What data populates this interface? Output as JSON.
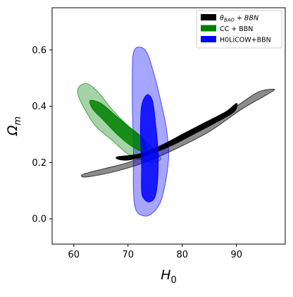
{
  "chart_data": {
    "type": "contour",
    "xlabel_base": "H",
    "xlabel_sub": "0",
    "ylabel_base": "Ω",
    "ylabel_sub": "m",
    "xlim": [
      56,
      99
    ],
    "ylim": [
      -0.09,
      0.75
    ],
    "xticks": [
      60,
      70,
      80,
      90
    ],
    "yticks": [
      0.0,
      0.2,
      0.4,
      0.6
    ],
    "ytick_labels": [
      "0.0",
      "0.2",
      "0.4",
      "0.6"
    ],
    "grid": false,
    "legend_position": "top-right",
    "series": [
      {
        "name": "CC + BBN",
        "legend_label": "CC + BBN",
        "color": "#008000",
        "contours": [
          {
            "level": "2sigma",
            "opacity": 0.35,
            "points": [
              [
                61,
                0.47
              ],
              [
                62.5,
                0.48
              ],
              [
                64.5,
                0.45
              ],
              [
                67,
                0.39
              ],
              [
                70,
                0.33
              ],
              [
                73,
                0.28
              ],
              [
                75.5,
                0.23
              ],
              [
                76,
                0.21
              ],
              [
                74.5,
                0.2
              ],
              [
                72.5,
                0.21
              ],
              [
                70,
                0.23
              ],
              [
                67,
                0.28
              ],
              [
                64,
                0.33
              ],
              [
                62,
                0.39
              ],
              [
                60.8,
                0.44
              ]
            ]
          },
          {
            "level": "1sigma",
            "opacity": 0.85,
            "points": [
              [
                63,
                0.42
              ],
              [
                65,
                0.41
              ],
              [
                67.5,
                0.37
              ],
              [
                70,
                0.33
              ],
              [
                72.5,
                0.29
              ],
              [
                73.5,
                0.25
              ],
              [
                72.5,
                0.24
              ],
              [
                70.5,
                0.26
              ],
              [
                68,
                0.3
              ],
              [
                65.5,
                0.35
              ],
              [
                63.5,
                0.39
              ]
            ]
          }
        ]
      },
      {
        "name": "θ_BAO + BBN",
        "legend_label_base": "θ",
        "legend_label_sub": "BAO",
        "legend_label_rest": " + BBN",
        "color": "#000000",
        "contours": [
          {
            "level": "2sigma",
            "opacity": 0.45,
            "points": [
              [
                62,
                0.16
              ],
              [
                66,
                0.18
              ],
              [
                70,
                0.2
              ],
              [
                75,
                0.24
              ],
              [
                80,
                0.29
              ],
              [
                85,
                0.34
              ],
              [
                90,
                0.4
              ],
              [
                94,
                0.45
              ],
              [
                97,
                0.46
              ],
              [
                95.5,
                0.44
              ],
              [
                91,
                0.39
              ],
              [
                85,
                0.31
              ],
              [
                79,
                0.25
              ],
              [
                73,
                0.2
              ],
              [
                68,
                0.17
              ],
              [
                63,
                0.15
              ],
              [
                61.5,
                0.15
              ]
            ]
          },
          {
            "level": "1sigma",
            "opacity": 1.0,
            "points": [
              [
                68,
                0.22
              ],
              [
                72,
                0.23
              ],
              [
                76,
                0.26
              ],
              [
                80,
                0.3
              ],
              [
                84,
                0.34
              ],
              [
                88,
                0.38
              ],
              [
                90,
                0.41
              ],
              [
                89.5,
                0.38
              ],
              [
                86,
                0.34
              ],
              [
                82,
                0.3
              ],
              [
                78,
                0.26
              ],
              [
                74,
                0.23
              ],
              [
                70.5,
                0.21
              ],
              [
                68.5,
                0.21
              ]
            ]
          }
        ]
      },
      {
        "name": "H0LiCOW+BBN",
        "legend_label": "H0LiCOW+BBN",
        "color": "#0000ff",
        "contours": [
          {
            "level": "2sigma",
            "opacity": 0.35,
            "points": [
              [
                71,
                0.59
              ],
              [
                72,
                0.61
              ],
              [
                73.5,
                0.59
              ],
              [
                75,
                0.5
              ],
              [
                76,
                0.42
              ],
              [
                77,
                0.33
              ],
              [
                77.5,
                0.23
              ],
              [
                77,
                0.14
              ],
              [
                76,
                0.06
              ],
              [
                74.5,
                0.02
              ],
              [
                73,
                0.01
              ],
              [
                71.5,
                0.03
              ],
              [
                71,
                0.1
              ],
              [
                71,
                0.25
              ],
              [
                70.8,
                0.4
              ],
              [
                70.8,
                0.52
              ]
            ]
          },
          {
            "level": "1sigma",
            "opacity": 0.85,
            "points": [
              [
                72.5,
                0.4
              ],
              [
                73.5,
                0.44
              ],
              [
                74.5,
                0.42
              ],
              [
                75,
                0.35
              ],
              [
                75.5,
                0.25
              ],
              [
                75.5,
                0.15
              ],
              [
                75,
                0.08
              ],
              [
                74,
                0.06
              ],
              [
                73,
                0.07
              ],
              [
                72.5,
                0.1
              ],
              [
                72.5,
                0.2
              ],
              [
                72.3,
                0.3
              ]
            ]
          }
        ]
      }
    ]
  }
}
